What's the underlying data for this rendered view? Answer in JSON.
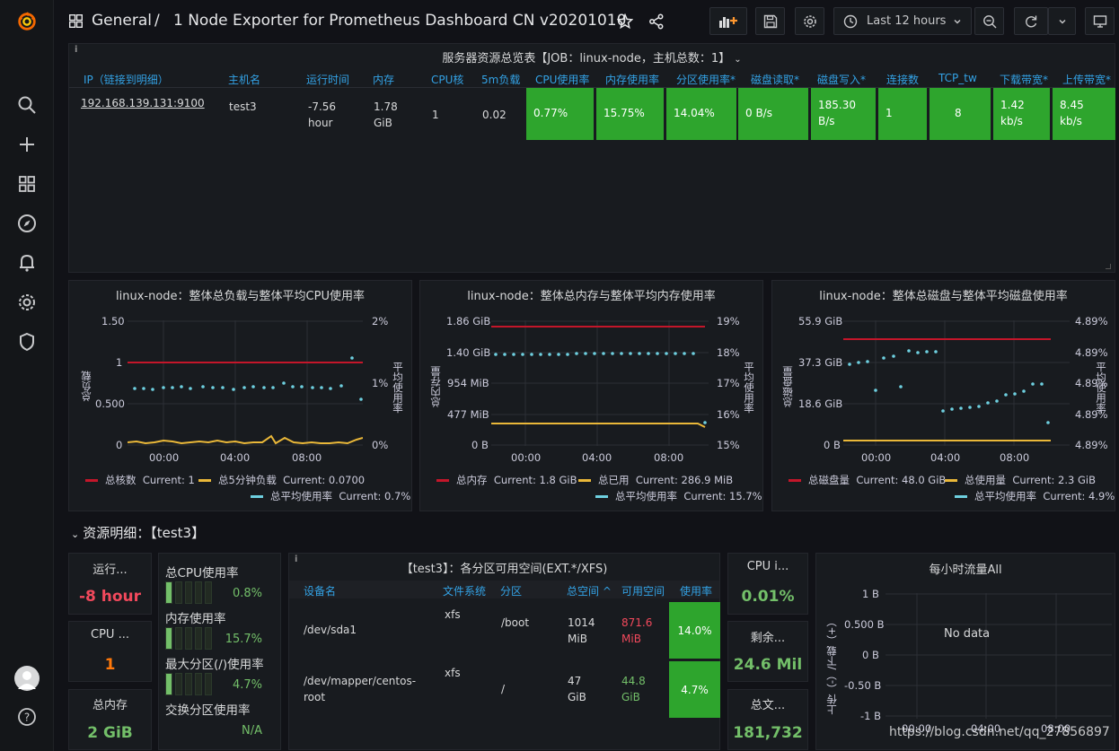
{
  "topbar": {
    "breadcrumb_folder": "General",
    "breadcrumb_sep": "/",
    "dashboard_title": "1 Node Exporter for Prometheus Dashboard CN v20201010",
    "time_range": "Last 12 hours"
  },
  "overview": {
    "title": "服务器资源总览表【JOB：linux-node，主机总数：1】",
    "columns": [
      "IP（链接到明细）",
      "主机名",
      "运行时间",
      "内存",
      "CPU核",
      "5m负载",
      "CPU使用率",
      "内存使用率",
      "分区使用率*",
      "磁盘读取*",
      "磁盘写入*",
      "连接数",
      "TCP_tw",
      "下载带宽*",
      "上传带宽*"
    ],
    "row": {
      "ip": "192.168.139.131:9100",
      "hostname": "test3",
      "uptime_1": "-7.56",
      "uptime_2": "hour",
      "mem_1": "1.78",
      "mem_2": "GiB",
      "cpu_cores": "1",
      "load5": "0.02",
      "cpu_usage": "0.77%",
      "mem_usage": "15.75%",
      "part_usage": "14.04%",
      "disk_read": "0 B/s",
      "disk_write_1": "185.30",
      "disk_write_2": "B/s",
      "conns": "1",
      "tcp_tw": "8",
      "down_1": "1.42",
      "down_2": "kb/s",
      "up_1": "8.45",
      "up_2": "kb/s"
    },
    "cell_color": "#2ea52d"
  },
  "charts": {
    "cpu": {
      "title": "linux-node：整体总负载与整体平均CPU使用率",
      "ylabel_left": "总负载",
      "ylabel_right": "平均使用率",
      "left_ticks": [
        "1.50",
        "1",
        "0.500",
        "0"
      ],
      "right_ticks": [
        "2%",
        "1%",
        "0%"
      ],
      "x_ticks": [
        "00:00",
        "04:00",
        "08:00"
      ],
      "legend": [
        {
          "name": "总核数",
          "current": "Current: 1"
        },
        {
          "name": "总5分钟负载",
          "current": "Current: 0.0700"
        },
        {
          "name": "总平均使用率",
          "current": "Current: 0.7%"
        }
      ]
    },
    "mem": {
      "title": "linux-node：整体总内存与整体平均内存使用率",
      "ylabel_left": "总内存量",
      "ylabel_right": "平均使用率",
      "left_ticks": [
        "1.86 GiB",
        "1.40 GiB",
        "954 MiB",
        "477 MiB",
        "0 B"
      ],
      "right_ticks": [
        "19%",
        "18%",
        "17%",
        "16%",
        "15%"
      ],
      "x_ticks": [
        "00:00",
        "04:00",
        "08:00"
      ],
      "legend": [
        {
          "name": "总内存",
          "current": "Current: 1.8 GiB"
        },
        {
          "name": "总已用",
          "current": "Current: 286.9 MiB"
        },
        {
          "name": "总平均使用率",
          "current": "Current: 15.7%"
        }
      ]
    },
    "disk": {
      "title": "linux-node：整体总磁盘与整体平均磁盘使用率",
      "ylabel_left": "总磁盘量",
      "ylabel_right": "平均使用率",
      "left_ticks": [
        "55.9 GiB",
        "37.3 GiB",
        "18.6 GiB",
        "0 B"
      ],
      "right_ticks": [
        "4.89%",
        "4.89%",
        "4.89%",
        "4.89%",
        "4.89%"
      ],
      "x_ticks": [
        "00:00",
        "04:00",
        "08:00"
      ],
      "legend": [
        {
          "name": "总磁盘量",
          "current": "Current: 48.0 GiB"
        },
        {
          "name": "总使用量",
          "current": "Current: 2.3 GiB"
        },
        {
          "name": "总平均使用率",
          "current": "Current: 4.9%"
        }
      ]
    },
    "colors": {
      "red": "#c4162a",
      "yellow": "#eab839",
      "cyan": "#6ed0e0"
    }
  },
  "details_row": {
    "title": "资源明细：【test3】"
  },
  "stats": {
    "uptime": {
      "title": "运行...",
      "value": "-8 hour",
      "color": "#f2495c"
    },
    "cpu_cores": {
      "title": "CPU ...",
      "value": "1",
      "color": "#ff780a"
    },
    "total_mem": {
      "title": "总内存",
      "value": "2 GiB",
      "color": "#73bf69"
    },
    "cpu_iowait": {
      "title": "CPU i...",
      "value": "0.01%",
      "color": "#73bf69"
    },
    "remaining": {
      "title": "剩余...",
      "value": "24.6 Mil",
      "color": "#73bf69"
    },
    "total_files": {
      "title": "总文...",
      "value": "181,732",
      "color": "#73bf69"
    }
  },
  "bargauge": [
    {
      "label": "总CPU使用率",
      "value": "0.8%"
    },
    {
      "label": "内存使用率",
      "value": "15.7%"
    },
    {
      "label": "最大分区(/)使用率",
      "value": "4.7%"
    },
    {
      "label": "交换分区使用率",
      "value": "N/A"
    }
  ],
  "partitions": {
    "title": "【test3】：各分区可用空间(EXT.*/XFS)",
    "columns": [
      "设备名",
      "文件系统",
      "分区",
      "总空间 ^",
      "可用空间",
      "使用率"
    ],
    "rows": [
      {
        "device": "/dev/sda1",
        "fs": "xfs",
        "mount": "/boot",
        "total_1": "1014",
        "total_2": "MiB",
        "avail_1": "871.6",
        "avail_2": "MiB",
        "usage": "14.0%"
      },
      {
        "device_1": "/dev/mapper/centos-",
        "device_2": "root",
        "fs": "xfs",
        "mount": "/",
        "total_1": "47",
        "total_2": "GiB",
        "avail_1": "44.8",
        "avail_2": "GiB",
        "usage": "4.7%"
      }
    ]
  },
  "traffic": {
    "title": "每小时流量All",
    "no_data": "No data",
    "ylabel": "上传（-）/下载（+）",
    "y_ticks": [
      "1 B",
      "0.500 B",
      "0 B",
      "-0.50 B",
      "-1 B"
    ],
    "x_ticks": [
      "00:00",
      "04:00",
      "08:00"
    ]
  },
  "watermark": "https://blog.csdn.net/qq_27856897"
}
